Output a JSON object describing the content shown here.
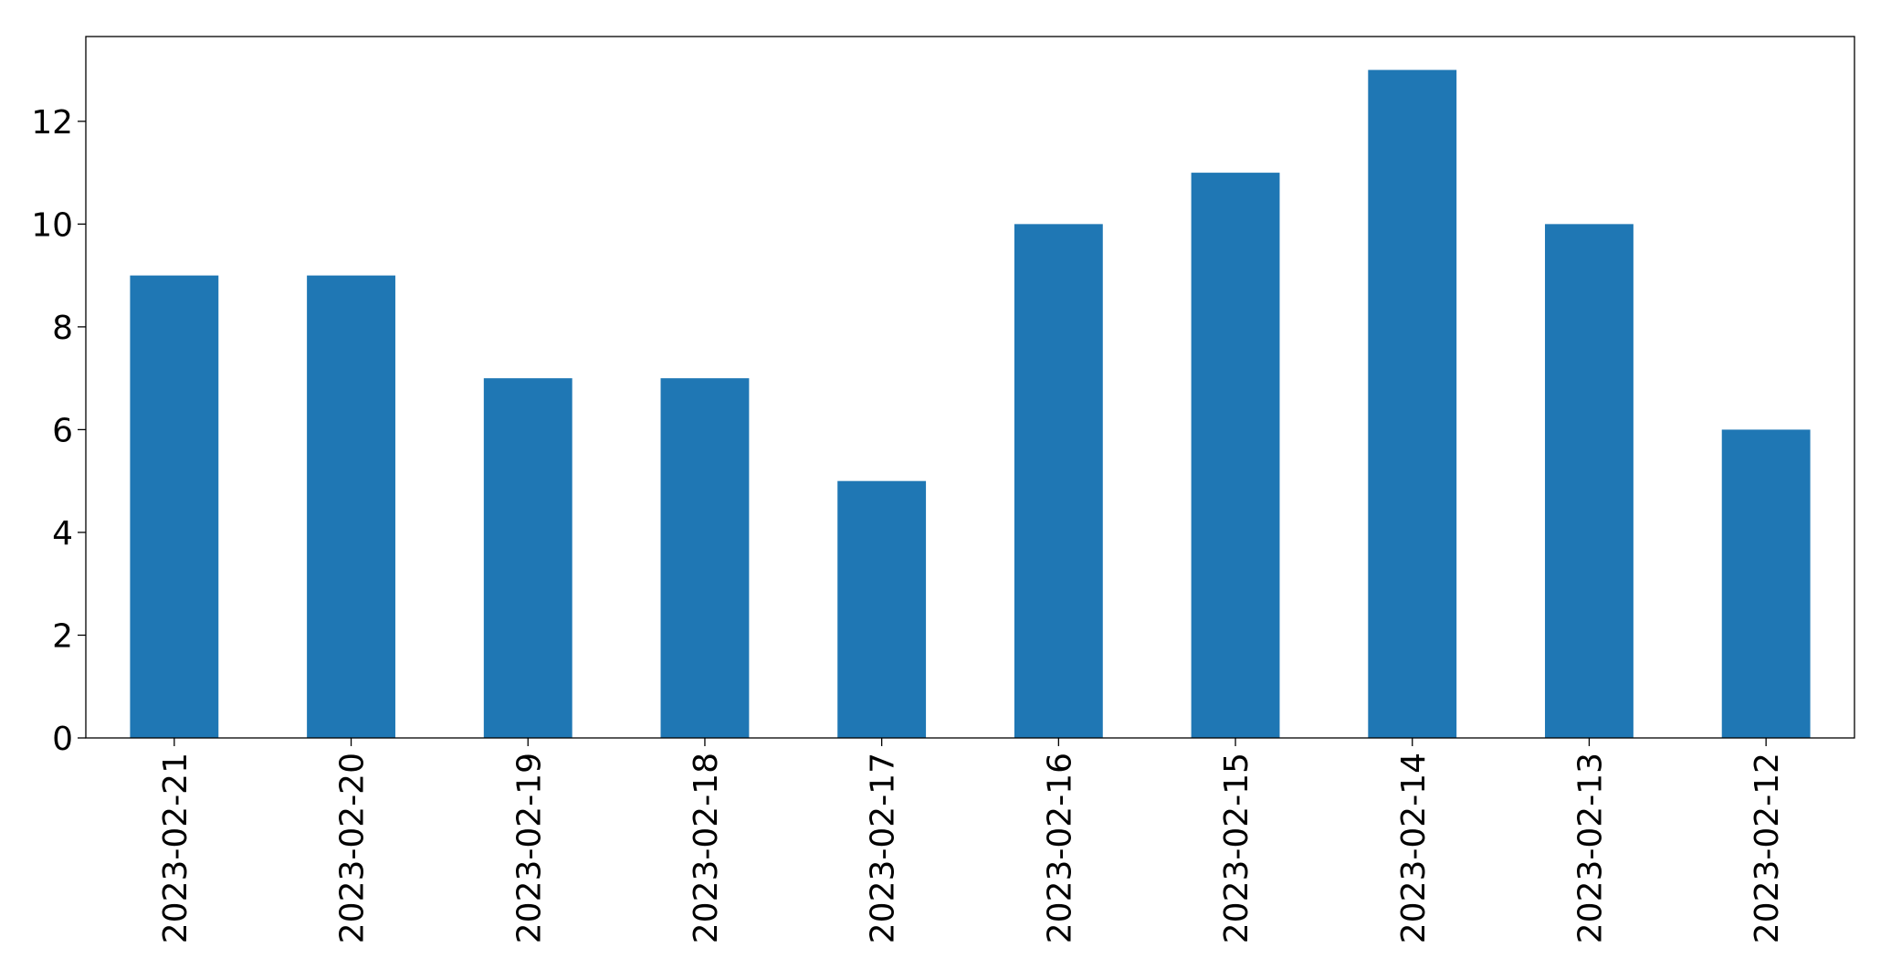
{
  "chart_data": {
    "type": "bar",
    "categories": [
      "2023-02-21",
      "2023-02-20",
      "2023-02-19",
      "2023-02-18",
      "2023-02-17",
      "2023-02-16",
      "2023-02-15",
      "2023-02-14",
      "2023-02-13",
      "2023-02-12"
    ],
    "values": [
      9,
      9,
      7,
      7,
      5,
      10,
      11,
      13,
      10,
      6
    ],
    "color": "#1f77b4",
    "ylim": [
      0,
      13.65
    ],
    "yticks": [
      0,
      2,
      4,
      6,
      8,
      10,
      12
    ],
    "grid": false
  }
}
